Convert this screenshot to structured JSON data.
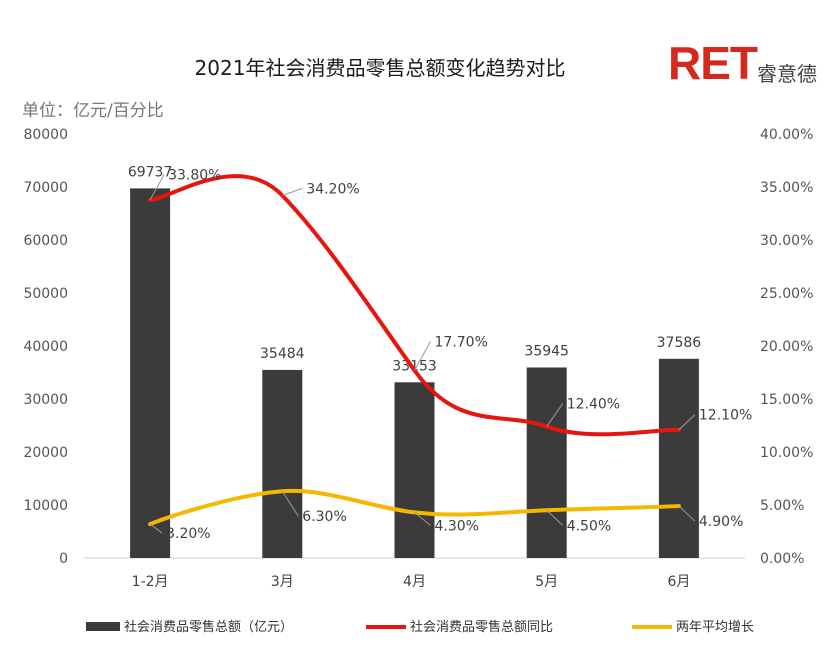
{
  "page": {
    "title": "2021年社会消费品零售总额变化趋势对比",
    "unit_label": "单位：亿元/百分比",
    "logo_text": "RET",
    "logo_sub": "睿意德"
  },
  "colors": {
    "bar": "#3d3a3b",
    "yoy_line": "#e8150f",
    "avg_line": "#f5b800",
    "logo": "#d42a1e"
  },
  "chart_data": {
    "type": "bar+line",
    "categories": [
      "1-2月",
      "3月",
      "4月",
      "5月",
      "6月"
    ],
    "left_axis": {
      "min": 0,
      "max": 80000,
      "step": 10000,
      "ticks": [
        "0",
        "10000",
        "20000",
        "30000",
        "40000",
        "50000",
        "60000",
        "70000",
        "80000"
      ]
    },
    "right_axis": {
      "min": 0,
      "max": 40,
      "step": 5,
      "ticks": [
        "0.00%",
        "5.00%",
        "10.00%",
        "15.00%",
        "20.00%",
        "25.00%",
        "30.00%",
        "35.00%",
        "40.00%"
      ]
    },
    "series": [
      {
        "name": "社会消费品零售总额（亿元）",
        "type": "bar",
        "axis": "left",
        "values": [
          69737,
          35484,
          33153,
          35945,
          37586
        ],
        "labels": [
          "69737",
          "35484",
          "33153",
          "35945",
          "37586"
        ]
      },
      {
        "name": "社会消费品零售总额同比",
        "type": "line",
        "axis": "right",
        "values": [
          33.8,
          34.2,
          17.7,
          12.4,
          12.1
        ],
        "labels": [
          "33.80%",
          "34.20%",
          "17.70%",
          "12.40%",
          "12.10%"
        ]
      },
      {
        "name": "两年平均增长",
        "type": "line",
        "axis": "right",
        "values": [
          3.2,
          6.3,
          4.3,
          4.5,
          4.9
        ],
        "labels": [
          "3.20%",
          "6.30%",
          "4.30%",
          "4.50%",
          "4.90%"
        ]
      }
    ]
  }
}
